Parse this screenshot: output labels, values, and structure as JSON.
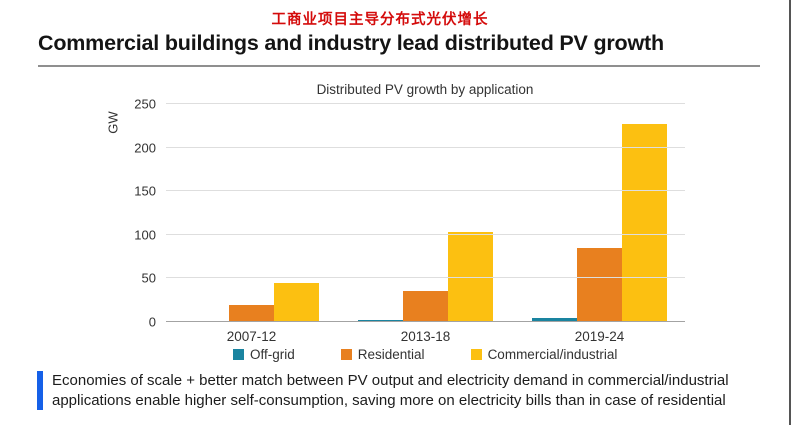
{
  "page": {
    "cn_title": "工商业项目主导分布式光伏增长",
    "heading": "Commercial buildings and industry lead distributed PV growth",
    "callout_text": "Economies of scale + better match between PV output and electricity demand in commercial/industrial applications enable higher self-consumption, saving more on electricity bills than in case of residential"
  },
  "colors": {
    "title_red": "#d40b0b",
    "callout_blue": "#1560e8",
    "off_grid_teal": "#1a84a0",
    "residential_orange": "#e8801f",
    "commercial_yellow": "#fcc011",
    "gridline_gray": "#dedede",
    "axis_gray": "#a3a3a3"
  },
  "chart_data": {
    "type": "bar",
    "title": "Distributed PV growth by application",
    "ylabel": "GW",
    "xlabel": "",
    "categories": [
      "2007-12",
      "2013-18",
      "2019-24"
    ],
    "series": [
      {
        "name": "Off-grid",
        "color": "#1a84a0",
        "values": [
          0.5,
          2,
          5
        ]
      },
      {
        "name": "Residential",
        "color": "#e8801f",
        "values": [
          19,
          36,
          85
        ]
      },
      {
        "name": "Commercial/industrial",
        "color": "#fcc011",
        "values": [
          45,
          103,
          227
        ]
      }
    ],
    "yticks": [
      0,
      50,
      100,
      150,
      200,
      250
    ],
    "ylim": [
      0,
      250
    ],
    "grid": true,
    "legend_position": "bottom"
  }
}
